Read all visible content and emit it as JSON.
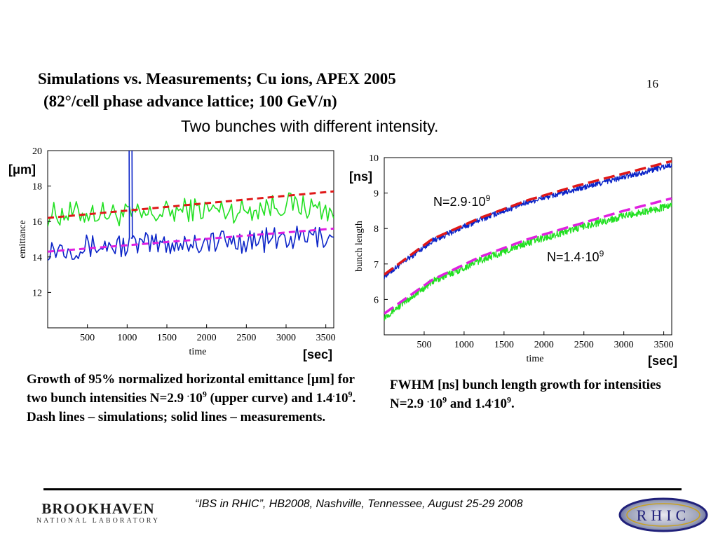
{
  "slide": {
    "title_line1": "Simulations vs. Measurements; Cu ions, APEX 2005",
    "title_line2": "(82°/cell phase advance lattice; 100 GeV/n)",
    "number": "16",
    "subtitle": "Two bunches with different intensity."
  },
  "chart_left": {
    "unit_label": "[μm]",
    "time_unit_label": "[sec]",
    "caption": {
      "part1": "Growth of 95% normalized horizontal emittance [μm] for two bunch intensities N=2.9",
      "dot1": ".",
      "ten1": "10",
      "exp1": "9",
      "part2": " (upper curve) and 1.4",
      "dot2": ".",
      "ten2": "10",
      "exp2": "9",
      "part3": ". Dash lines – simulations; solid lines – measurements."
    }
  },
  "chart_right": {
    "unit_label": "[ns]",
    "time_unit_label": "[sec]",
    "curve_label_high": {
      "text": "N=2.9·10",
      "exp": "9"
    },
    "curve_label_low": {
      "text": "N=1.4·10",
      "exp": "9"
    },
    "caption": {
      "part1": "FWHM [ns] bunch length growth for intensities N=2.9",
      "dot1": ".",
      "ten1": "10",
      "exp1": "9",
      "part2": " and 1.4",
      "dot2": ".",
      "ten2": "10",
      "exp2": "9",
      "part3": "."
    }
  },
  "footer": {
    "text": "“IBS in RHIC”, HB2008, Nashville, Tennessee, August 25-29  2008",
    "logo_left": "BROOKHAVEN NATIONAL LABORATORY",
    "logo_right": "RHIC"
  },
  "colors": {
    "measured_high": "#0b24c8",
    "measured_low": "#22e022",
    "sim_high": "#e01818",
    "sim_low": "#e020e0"
  },
  "chart_data": [
    {
      "type": "line",
      "xlabel": "time",
      "ylabel": "emittance",
      "xlim": [
        0,
        3600
      ],
      "ylim": [
        10,
        20
      ],
      "x_ticks": [
        500,
        1000,
        1500,
        2000,
        2500,
        3000,
        3500
      ],
      "y_ticks": [
        12,
        14,
        16,
        18,
        20
      ],
      "grid": false,
      "series": [
        {
          "key": "meas_high",
          "style": "solid",
          "color": "#22e022",
          "x": [
            0,
            600,
            1200,
            1800,
            2400,
            3000,
            3600
          ],
          "values": [
            16.4,
            16.5,
            16.3,
            16.7,
            16.6,
            17.0,
            16.6
          ],
          "noise": 0.7
        },
        {
          "key": "meas_low",
          "style": "solid",
          "color": "#0b24c8",
          "x": [
            0,
            600,
            1200,
            1800,
            2400,
            3000,
            3600
          ],
          "values": [
            14.5,
            14.6,
            14.7,
            14.8,
            14.9,
            15.0,
            15.2
          ],
          "noise": 0.7,
          "spike": {
            "x": 1030,
            "value": 20
          }
        },
        {
          "key": "sim_high",
          "style": "dash",
          "color": "#e01818",
          "x": [
            0,
            3600
          ],
          "values": [
            16.2,
            17.7
          ]
        },
        {
          "key": "sim_low",
          "style": "dash",
          "color": "#e020e0",
          "x": [
            0,
            3600
          ],
          "values": [
            14.3,
            15.6
          ]
        }
      ]
    },
    {
      "type": "line",
      "xlabel": "time",
      "ylabel": "bunch length",
      "xlim": [
        0,
        3600
      ],
      "ylim": [
        5,
        10
      ],
      "x_ticks": [
        500,
        1000,
        1500,
        2000,
        2500,
        3000,
        3500
      ],
      "y_ticks": [
        6,
        7,
        8,
        9,
        10
      ],
      "grid": false,
      "series": [
        {
          "key": "meas_high",
          "style": "solid",
          "color": "#0b24c8",
          "x": [
            0,
            600,
            1200,
            1800,
            2400,
            3000,
            3600
          ],
          "values": [
            6.65,
            7.65,
            8.25,
            8.75,
            9.1,
            9.45,
            9.8
          ],
          "noise": 0.08
        },
        {
          "key": "meas_low",
          "style": "solid",
          "color": "#22e022",
          "x": [
            0,
            600,
            1200,
            1800,
            2400,
            3000,
            3600
          ],
          "values": [
            5.5,
            6.5,
            7.1,
            7.6,
            8.0,
            8.35,
            8.65
          ],
          "noise": 0.1
        },
        {
          "key": "sim_high",
          "style": "dash",
          "color": "#e01818",
          "x": [
            0,
            600,
            1200,
            1800,
            2400,
            3000,
            3600
          ],
          "values": [
            6.7,
            7.7,
            8.3,
            8.8,
            9.2,
            9.55,
            9.9
          ]
        },
        {
          "key": "sim_low",
          "style": "dash",
          "color": "#e020e0",
          "x": [
            0,
            600,
            1200,
            1800,
            2400,
            3000,
            3600
          ],
          "values": [
            5.6,
            6.55,
            7.2,
            7.7,
            8.1,
            8.5,
            8.85
          ]
        }
      ]
    }
  ]
}
